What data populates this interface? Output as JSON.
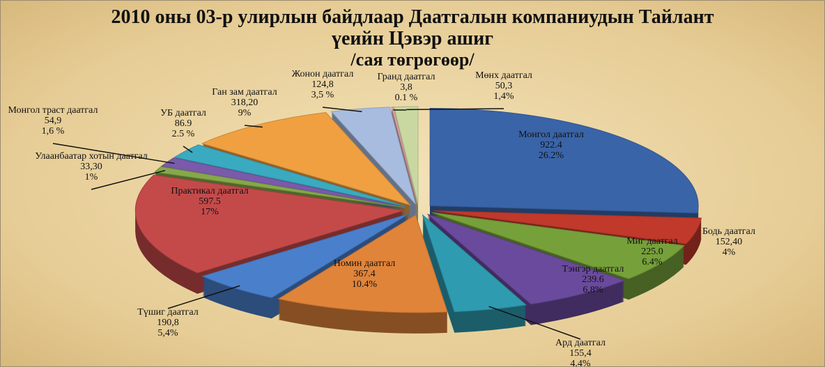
{
  "chart_data": {
    "type": "pie",
    "title": "2010 оны 03-р улирлын байдлаар Даатгалын компаниудын Тайлант үеийн Цэвэр ашиг",
    "subtitle": "/сая төгрөгөөр/",
    "categories": [
      "Монгол даатгал",
      "Бодь даатгал",
      "Миг даатгал",
      "Тэнгэр даатгал",
      "Ард даатгал",
      "Номин даатгал",
      "Түшиг даатгал",
      "Практикал даатгал",
      "Улаанбаатар хотын даатгал",
      "Монгол траст даатгал",
      "УБ даатгал",
      "Ган зам даатгал",
      "Жонон даатгал",
      "Гранд даатгал",
      "Мөнх даатгал"
    ],
    "values": [
      922.4,
      152.4,
      225.0,
      239.6,
      155.4,
      367.4,
      190.8,
      597.5,
      33.3,
      54.9,
      86.9,
      318.2,
      124.8,
      3.8,
      50.3
    ],
    "value_labels": [
      "922.4",
      "152,40",
      "225.0",
      "239.6",
      "155,4",
      "367.4",
      "190,8",
      "597.5",
      "33,30",
      "54,9",
      "86.9",
      "318,20",
      "124,8",
      "3,8",
      "50,3"
    ],
    "shares": [
      26.2,
      4,
      6.4,
      6.8,
      4.4,
      10.4,
      5.4,
      17,
      1,
      1.6,
      2.5,
      9,
      3.5,
      0.1,
      1.4
    ],
    "share_labels": [
      "26.2%",
      "4%",
      "6.4%",
      "6,8%",
      "4.4%",
      "10.4%",
      "5,4%",
      "17%",
      "1%",
      "1,6 %",
      "2.5 %",
      "9%",
      "3,5 %",
      "0.1 %",
      "1,4%"
    ],
    "colors": [
      "#3a64a8",
      "#c0392b",
      "#76a03a",
      "#6a4a9c",
      "#2e9bb0",
      "#e0843a",
      "#4a7fcc",
      "#c44a4a",
      "#86a84a",
      "#7a5aaa",
      "#3aaac0",
      "#f0a040",
      "#a8bce0",
      "#e0a8a8",
      "#c8d8a0"
    ]
  }
}
